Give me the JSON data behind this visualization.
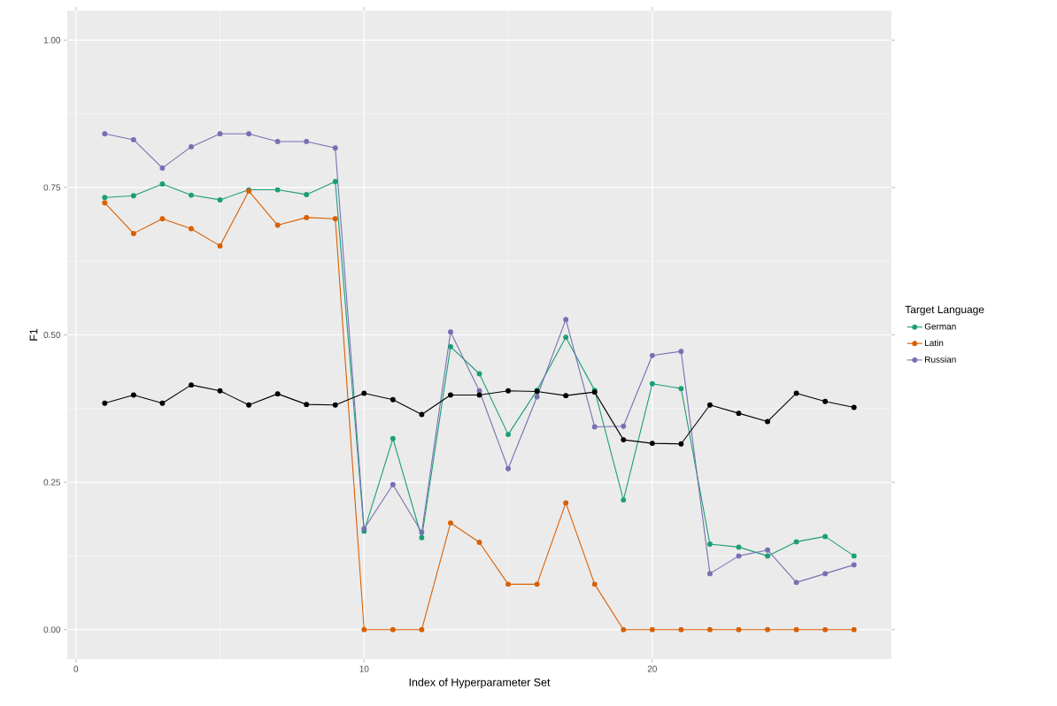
{
  "chart_data": {
    "type": "line",
    "xlabel": "Index of Hyperparameter Set",
    "ylabel": "F1",
    "legend_title": "Target Language",
    "x": [
      1,
      2,
      3,
      4,
      5,
      6,
      7,
      8,
      9,
      10,
      11,
      12,
      13,
      14,
      15,
      16,
      17,
      18,
      19,
      20,
      21,
      22,
      23,
      24,
      25,
      26,
      27
    ],
    "series": [
      {
        "name": "German",
        "color": "#1b9e77",
        "values": [
          0.733,
          0.736,
          0.756,
          0.737,
          0.729,
          0.746,
          0.746,
          0.738,
          0.76,
          0.167,
          0.324,
          0.156,
          0.48,
          0.434,
          0.331,
          0.406,
          0.496,
          0.406,
          0.22,
          0.417,
          0.409,
          0.145,
          0.14,
          0.125,
          0.149,
          0.158,
          0.125
        ]
      },
      {
        "name": "Latin",
        "color": "#d95f02",
        "values": [
          0.724,
          0.672,
          0.697,
          0.68,
          0.651,
          0.744,
          0.686,
          0.699,
          0.697,
          0,
          0,
          0,
          0.181,
          0.148,
          0.077,
          0.077,
          0.215,
          0.077,
          0,
          0,
          0,
          0,
          0,
          0,
          0,
          0,
          0
        ]
      },
      {
        "name": "Russian",
        "color": "#7570b3",
        "values": [
          0.841,
          0.831,
          0.783,
          0.819,
          0.841,
          0.841,
          0.828,
          0.828,
          0.817,
          0.171,
          0.246,
          0.165,
          0.505,
          0.405,
          0.273,
          0.395,
          0.526,
          0.344,
          0.345,
          0.465,
          0.472,
          0.095,
          0.125,
          0.135,
          0.08,
          0.095,
          0.11
        ]
      },
      {
        "color": "#000000",
        "values": [
          0.384,
          0.398,
          0.384,
          0.415,
          0.405,
          0.381,
          0.4,
          0.382,
          0.381,
          0.401,
          0.39,
          0.365,
          0.398,
          0.398,
          0.405,
          0.404,
          0.397,
          0.403,
          0.322,
          0.316,
          0.315,
          0.381,
          0.367,
          0.353,
          0.401,
          0.387,
          0.377
        ]
      }
    ],
    "xlim": [
      -0.3,
      28.3
    ],
    "ylim": [
      -0.05,
      1.05
    ],
    "xticks": [
      0,
      10,
      20
    ],
    "yticks": [
      {
        "value": 0,
        "label": "0.00"
      },
      {
        "value": 0.25,
        "label": "0.25"
      },
      {
        "value": 0.5,
        "label": "0.50"
      },
      {
        "value": 0.75,
        "label": "0.75"
      },
      {
        "value": 1,
        "label": "1.00"
      }
    ],
    "grid": true,
    "legend": "right",
    "marker": "circle",
    "line_style": "solid"
  }
}
